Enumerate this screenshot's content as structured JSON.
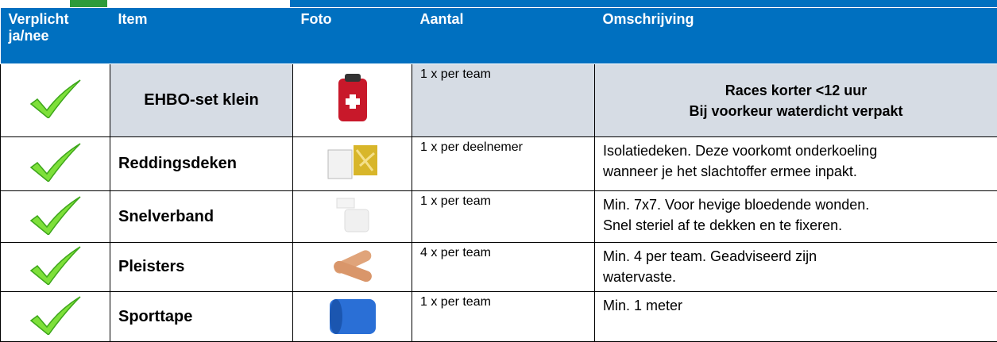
{
  "header": [
    "Verplicht ja/nee",
    "Item",
    "Foto",
    "Aantal",
    "Omschrijving"
  ],
  "rows": [
    {
      "item": "EHBO-set klein",
      "aantal": "1 x per team",
      "omschrijving": [
        "Races korter <12 uur",
        "Bij voorkeur waterdicht verpakt"
      ]
    },
    {
      "item": "Reddingsdeken",
      "aantal": "1 x per deelnemer",
      "omschrijving": [
        "Isolatiedeken. Deze voorkomt onderkoeling",
        "wanneer je het slachtoffer ermee inpakt."
      ]
    },
    {
      "item": "Snelverband",
      "aantal": "1 x per team",
      "omschrijving": [
        "Min. 7x7. Voor hevige bloedende wonden.",
        "Snel steriel af te dekken en te fixeren."
      ]
    },
    {
      "item": "Pleisters",
      "aantal": "4 x per team",
      "omschrijving": [
        "Min. 4 per team. Geadviseerd zijn",
        "watervaste."
      ]
    },
    {
      "item": "Sporttape",
      "aantal": "1 x per team",
      "omschrijving": [
        "Min. 1 meter"
      ]
    }
  ]
}
